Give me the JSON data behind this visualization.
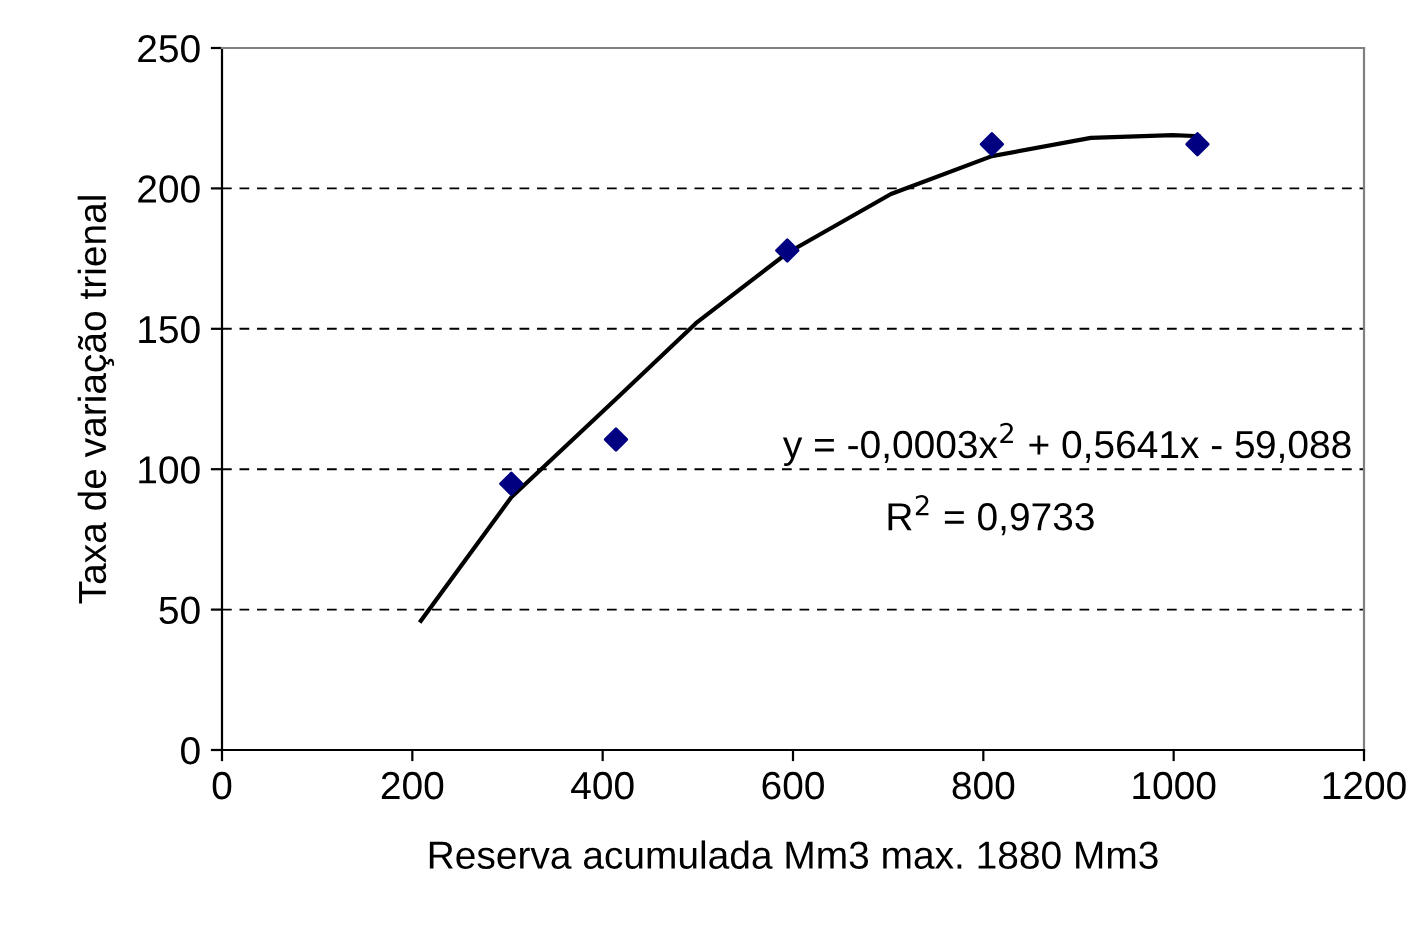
{
  "chart_data": {
    "type": "scatter",
    "xlabel": "Reserva acumulada Mm3 max. 1880 Mm3",
    "ylabel": "Taxa de variação trienal",
    "series": [
      {
        "color": "#000080",
        "marker": "diamond",
        "x": [
          304,
          414,
          594,
          809,
          1025
        ],
        "values": [
          94.8,
          110.6,
          177.9,
          215.7,
          215.7
        ]
      },
      {
        "type": "line",
        "color": "#000000",
        "marker": "none",
        "line_style": "solid",
        "x": [
          209,
          304,
          414,
          498,
          594,
          703,
          809,
          913,
          999,
          1026
        ],
        "values": [
          46,
          90,
          125,
          152,
          177,
          198,
          211.5,
          218,
          219,
          218.6
        ]
      }
    ],
    "xlim": [
      0,
      1200
    ],
    "xticks": [
      0,
      200,
      400,
      600,
      800,
      1000,
      1200
    ],
    "ylim": [
      0,
      250
    ],
    "yticks": [
      0,
      50,
      100,
      150,
      200,
      250
    ],
    "grid": "y",
    "legend": false,
    "annotations": [
      "y = -0,0003x$^{2}$ + 0,5641x - 59,088",
      "R$^{2}$ = 0,9733"
    ]
  }
}
